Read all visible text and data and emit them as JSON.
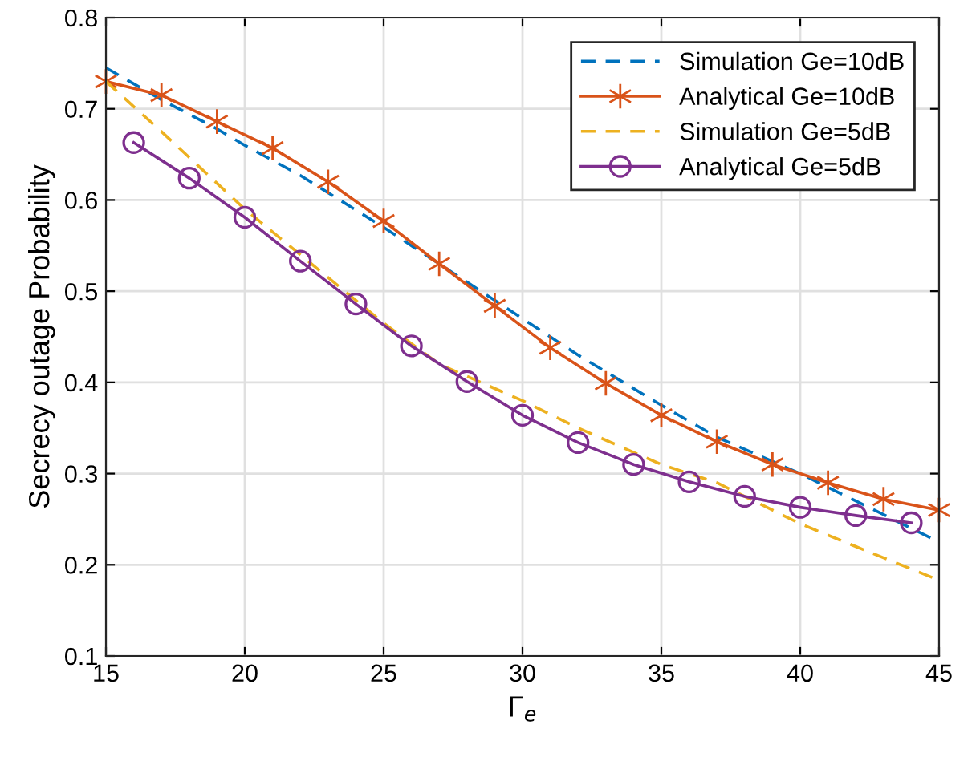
{
  "chart_data": {
    "type": "line",
    "xlabel": "Γ$_{e}$",
    "ylabel": "Secrecy outage Probability",
    "xlim": [
      15,
      45
    ],
    "ylim": [
      0.1,
      0.8
    ],
    "xticks": [
      15,
      20,
      25,
      30,
      35,
      40,
      45
    ],
    "yticks": [
      0.1,
      0.2,
      0.3,
      0.4,
      0.5,
      0.6,
      0.7,
      0.8
    ],
    "grid": true,
    "legend": "top right",
    "series": [
      {
        "name": "Simulation Ge=10dB",
        "color": "#0072bd",
        "line_style": "dashed",
        "marker": "none",
        "x": [
          15,
          17,
          19,
          20,
          22,
          25,
          27,
          30,
          32,
          35,
          37,
          40,
          42,
          45
        ],
        "values": [
          0.745,
          0.71,
          0.678,
          0.66,
          0.627,
          0.57,
          0.53,
          0.47,
          0.43,
          0.375,
          0.34,
          0.3,
          0.27,
          0.225
        ]
      },
      {
        "name": "Analytical Ge=10dB",
        "color": "#d95319",
        "line_style": "solid",
        "marker": "cross",
        "x": [
          15,
          17,
          19,
          21,
          23,
          25,
          27,
          29,
          31,
          33,
          35,
          37,
          39,
          41,
          43,
          45
        ],
        "values": [
          0.73,
          0.715,
          0.686,
          0.657,
          0.62,
          0.577,
          0.53,
          0.484,
          0.438,
          0.399,
          0.364,
          0.335,
          0.31,
          0.29,
          0.272,
          0.26
        ]
      },
      {
        "name": "Simulation Ge=5dB",
        "color": "#edb120",
        "line_style": "dashed",
        "marker": "none",
        "x": [
          15,
          17,
          20,
          22,
          25,
          27,
          30,
          32,
          35,
          37,
          40,
          42,
          45
        ],
        "values": [
          0.73,
          0.675,
          0.59,
          0.54,
          0.465,
          0.42,
          0.38,
          0.35,
          0.31,
          0.29,
          0.245,
          0.22,
          0.183
        ]
      },
      {
        "name": "Analytical Ge=5dB",
        "color": "#7e2f8e",
        "line_style": "solid",
        "marker": "circle",
        "x": [
          16,
          18,
          20,
          22,
          24,
          26,
          28,
          30,
          32,
          34,
          36,
          38,
          40,
          42,
          44
        ],
        "values": [
          0.663,
          0.624,
          0.581,
          0.533,
          0.486,
          0.44,
          0.401,
          0.364,
          0.334,
          0.31,
          0.291,
          0.275,
          0.263,
          0.254,
          0.246
        ]
      }
    ]
  }
}
